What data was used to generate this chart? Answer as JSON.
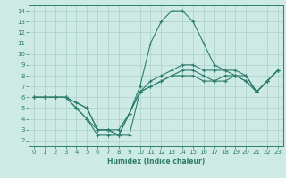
{
  "lines": [
    {
      "x": [
        0,
        1,
        2,
        3,
        4,
        5,
        6,
        7,
        8,
        9,
        10,
        11,
        12,
        13,
        14,
        15,
        16,
        17,
        18,
        19,
        20,
        21,
        22,
        23
      ],
      "y": [
        6,
        6,
        6,
        6,
        5,
        4,
        3,
        3,
        2.5,
        2.5,
        6.5,
        7,
        7.5,
        8,
        8,
        8,
        7.5,
        7.5,
        7.5,
        8,
        7.5,
        6.5,
        7.5,
        8.5
      ]
    },
    {
      "x": [
        0,
        1,
        2,
        3,
        4,
        5,
        6,
        7,
        8,
        9,
        10,
        11,
        12,
        13,
        14,
        15,
        16,
        17,
        18,
        19,
        20,
        21,
        22,
        23
      ],
      "y": [
        6,
        6,
        6,
        6,
        5.5,
        5,
        3,
        3,
        2.5,
        4.5,
        6.5,
        7,
        7.5,
        8,
        8.5,
        8.5,
        8,
        7.5,
        8,
        8,
        7.5,
        6.5,
        7.5,
        8.5
      ]
    },
    {
      "x": [
        0,
        1,
        2,
        3,
        4,
        5,
        6,
        7,
        8,
        9,
        10,
        11,
        12,
        13,
        14,
        15,
        16,
        17,
        18,
        19,
        20,
        21,
        22,
        23
      ],
      "y": [
        6,
        6,
        6,
        6,
        5.5,
        5,
        3,
        3,
        3,
        4.5,
        6.5,
        7.5,
        8,
        8.5,
        9,
        9,
        8.5,
        8.5,
        8.5,
        8.5,
        8,
        6.5,
        7.5,
        8.5
      ]
    },
    {
      "x": [
        0,
        1,
        2,
        3,
        4,
        5,
        6,
        7,
        8,
        9,
        10,
        11,
        12,
        13,
        14,
        15,
        16,
        17,
        18,
        19,
        20,
        21,
        22,
        23
      ],
      "y": [
        6,
        6,
        6,
        6,
        5,
        4,
        2.5,
        2.5,
        2.5,
        4.5,
        7,
        11,
        13,
        14,
        14,
        13,
        11,
        9,
        8.5,
        8,
        8,
        6.5,
        7.5,
        8.5
      ]
    }
  ],
  "line_color": "#2e7d6e",
  "bg_color": "#ceeae4",
  "grid_color": "#aacfc9",
  "axis_color": "#2e7d6e",
  "xlabel": "Humidex (Indice chaleur)",
  "xlim": [
    -0.5,
    23.5
  ],
  "ylim": [
    1.5,
    14.5
  ],
  "xticks": [
    0,
    1,
    2,
    3,
    4,
    5,
    6,
    7,
    8,
    9,
    10,
    11,
    12,
    13,
    14,
    15,
    16,
    17,
    18,
    19,
    20,
    21,
    22,
    23
  ],
  "yticks": [
    2,
    3,
    4,
    5,
    6,
    7,
    8,
    9,
    10,
    11,
    12,
    13,
    14
  ],
  "marker": "+",
  "marker_size": 3.5,
  "line_width": 0.8,
  "tick_fontsize": 5.0,
  "xlabel_fontsize": 5.5
}
